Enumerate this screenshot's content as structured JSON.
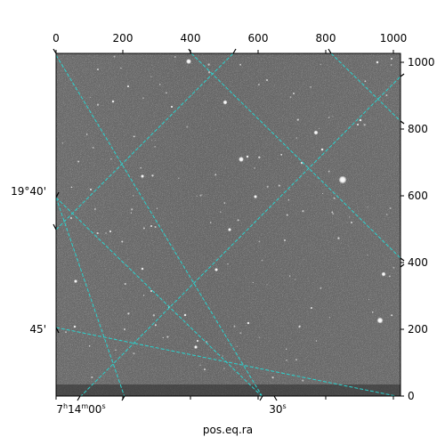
{
  "image": {
    "description_free": true,
    "grid_color": "#2ad3cf",
    "background_gray": "#6f6f6f"
  },
  "axes": {
    "bottom_pixel_ticks": [
      "0",
      "200",
      "400",
      "600",
      "800",
      "1000"
    ],
    "right_pixel_ticks": [
      "1000",
      "800",
      "600",
      "400",
      "200",
      "0"
    ],
    "left_world_ticks": [
      "19°40'",
      "45'"
    ],
    "bottom_world_ticks": [
      "7h14m00s",
      "30s"
    ],
    "xlabel": "pos.eq.ra"
  }
}
